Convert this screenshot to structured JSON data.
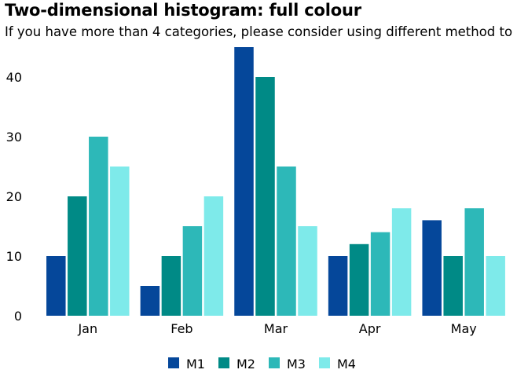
{
  "chart_data": {
    "type": "bar",
    "title": "Two-dimensional histogram: full colour",
    "subtitle": "If you have more than 4 categories, please consider using different method to",
    "xlabel": "",
    "ylabel": "",
    "categories": [
      "Jan",
      "Feb",
      "Mar",
      "Apr",
      "May"
    ],
    "series": [
      {
        "name": "M1",
        "color": "#05479a",
        "values": [
          10,
          5,
          45,
          10,
          16
        ]
      },
      {
        "name": "M2",
        "color": "#008a86",
        "values": [
          20,
          10,
          40,
          12,
          10
        ]
      },
      {
        "name": "M3",
        "color": "#2db8b8",
        "values": [
          30,
          15,
          25,
          14,
          18
        ]
      },
      {
        "name": "M4",
        "color": "#7eeaea",
        "values": [
          25,
          20,
          15,
          18,
          10
        ]
      }
    ],
    "ylim": [
      0,
      45
    ],
    "yticks": [
      0,
      10,
      20,
      30,
      40
    ],
    "grid": false,
    "legend_position": "bottom"
  }
}
